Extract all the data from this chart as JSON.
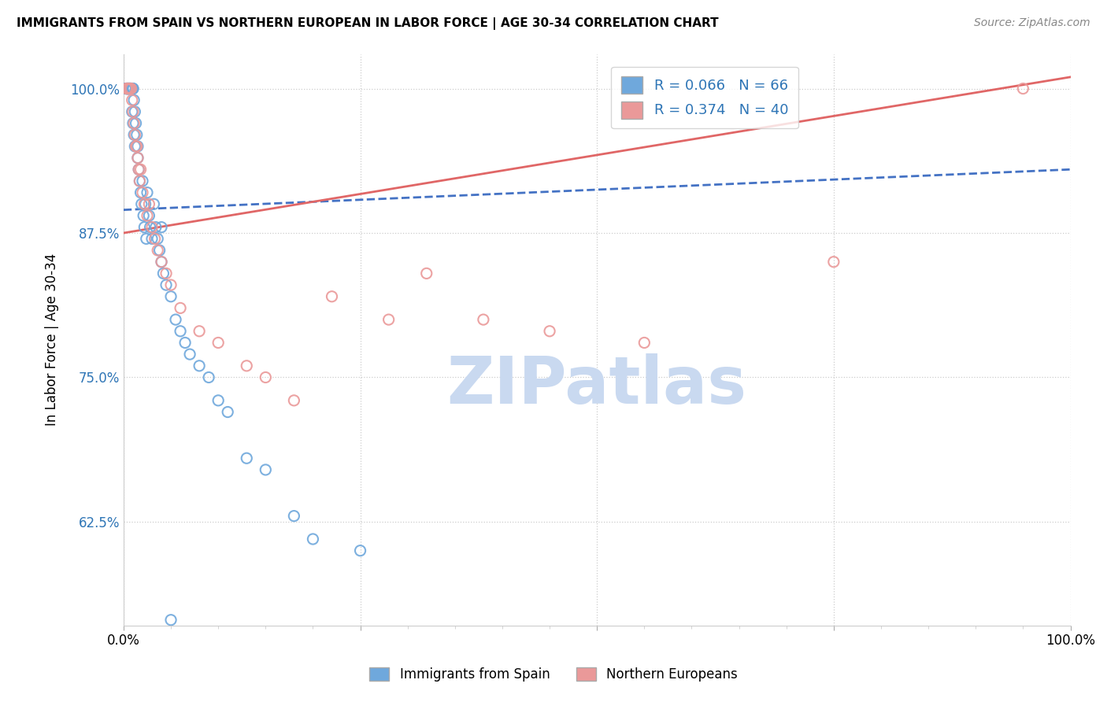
{
  "title": "IMMIGRANTS FROM SPAIN VS NORTHERN EUROPEAN IN LABOR FORCE | AGE 30-34 CORRELATION CHART",
  "source": "Source: ZipAtlas.com",
  "xlabel": "",
  "ylabel": "In Labor Force | Age 30-34",
  "xlim": [
    0.0,
    1.0
  ],
  "ylim": [
    0.535,
    1.03
  ],
  "yticks": [
    0.625,
    0.75,
    0.875,
    1.0
  ],
  "ytick_labels": [
    "62.5%",
    "75.0%",
    "87.5%",
    "100.0%"
  ],
  "xticks": [
    0.0,
    0.25,
    0.5,
    0.75,
    1.0
  ],
  "xtick_labels": [
    "0.0%",
    "",
    "",
    "",
    "100.0%"
  ],
  "blue_R": 0.066,
  "blue_N": 66,
  "pink_R": 0.374,
  "pink_N": 40,
  "blue_color": "#6fa8dc",
  "pink_color": "#ea9999",
  "blue_line_color": "#4472c4",
  "pink_line_color": "#e06666",
  "watermark": "ZIPatlas",
  "watermark_color": "#c9d9f0",
  "legend_label_blue": "Immigrants from Spain",
  "legend_label_pink": "Northern Europeans",
  "blue_scatter_x": [
    0.002,
    0.003,
    0.003,
    0.004,
    0.004,
    0.004,
    0.005,
    0.005,
    0.005,
    0.006,
    0.006,
    0.006,
    0.007,
    0.007,
    0.007,
    0.008,
    0.008,
    0.009,
    0.009,
    0.01,
    0.01,
    0.01,
    0.011,
    0.011,
    0.012,
    0.012,
    0.013,
    0.014,
    0.015,
    0.015,
    0.016,
    0.017,
    0.018,
    0.019,
    0.02,
    0.021,
    0.022,
    0.023,
    0.024,
    0.025,
    0.027,
    0.028,
    0.03,
    0.032,
    0.034,
    0.036,
    0.038,
    0.04,
    0.04,
    0.042,
    0.045,
    0.05,
    0.055,
    0.06,
    0.065,
    0.07,
    0.08,
    0.09,
    0.1,
    0.11,
    0.13,
    0.15,
    0.18,
    0.2,
    0.25,
    0.05
  ],
  "blue_scatter_y": [
    1.0,
    1.0,
    1.0,
    1.0,
    1.0,
    1.0,
    1.0,
    1.0,
    1.0,
    1.0,
    1.0,
    1.0,
    1.0,
    1.0,
    1.0,
    1.0,
    1.0,
    1.0,
    0.98,
    1.0,
    1.0,
    0.97,
    0.99,
    0.96,
    0.98,
    0.95,
    0.97,
    0.96,
    0.95,
    0.94,
    0.93,
    0.92,
    0.91,
    0.9,
    0.92,
    0.89,
    0.88,
    0.9,
    0.87,
    0.91,
    0.89,
    0.88,
    0.87,
    0.9,
    0.88,
    0.87,
    0.86,
    0.88,
    0.85,
    0.84,
    0.83,
    0.82,
    0.8,
    0.79,
    0.78,
    0.77,
    0.76,
    0.75,
    0.73,
    0.72,
    0.68,
    0.67,
    0.63,
    0.61,
    0.6,
    0.54
  ],
  "pink_scatter_x": [
    0.003,
    0.004,
    0.005,
    0.006,
    0.007,
    0.008,
    0.009,
    0.01,
    0.011,
    0.012,
    0.013,
    0.014,
    0.015,
    0.016,
    0.017,
    0.018,
    0.02,
    0.022,
    0.025,
    0.027,
    0.03,
    0.033,
    0.036,
    0.04,
    0.045,
    0.05,
    0.06,
    0.08,
    0.1,
    0.13,
    0.15,
    0.18,
    0.22,
    0.28,
    0.32,
    0.38,
    0.45,
    0.55,
    0.75,
    0.95
  ],
  "pink_scatter_y": [
    1.0,
    1.0,
    1.0,
    1.0,
    1.0,
    1.0,
    0.99,
    0.98,
    0.97,
    0.96,
    0.95,
    0.95,
    0.94,
    0.93,
    0.92,
    0.93,
    0.91,
    0.9,
    0.89,
    0.9,
    0.88,
    0.87,
    0.86,
    0.85,
    0.84,
    0.83,
    0.81,
    0.79,
    0.78,
    0.76,
    0.75,
    0.73,
    0.82,
    0.8,
    0.84,
    0.8,
    0.79,
    0.78,
    0.85,
    1.0
  ],
  "blue_line_x": [
    0.0,
    1.0
  ],
  "blue_line_y": [
    0.895,
    0.93
  ],
  "pink_line_x": [
    0.0,
    1.0
  ],
  "pink_line_y": [
    0.875,
    1.01
  ]
}
